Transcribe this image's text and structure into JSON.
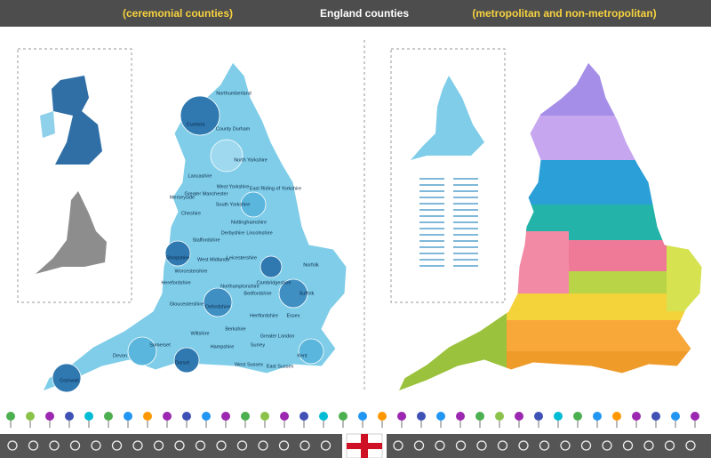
{
  "header": {
    "left": "(ceremonial counties)",
    "center": "England counties",
    "right": "(metropolitan and non-metropolitan)"
  },
  "left_map": {
    "labels": [
      "Northumberland",
      "Cumbria",
      "County Durham",
      "North Yorkshire",
      "Lancashire",
      "West Yorkshire",
      "East Riding of Yorkshire",
      "Greater Manchester",
      "Merseyside",
      "South Yorkshire",
      "Cheshire",
      "Lincolnshire",
      "Staffordshire",
      "Derbyshire",
      "Nottinghamshire",
      "Shropshire",
      "Leicestershire",
      "West Midlands",
      "Norfolk",
      "Herefordshire",
      "Worcestershire",
      "Northamptonshire",
      "Cambridgeshire",
      "Suffolk",
      "Gloucestershire",
      "Oxfordshire",
      "Hertfordshire",
      "Essex",
      "Bedfordshire",
      "Greater London",
      "Wiltshire",
      "Berkshire",
      "Somerset",
      "Surrey",
      "Kent",
      "Devon",
      "Dorset",
      "Hampshire",
      "West Sussex",
      "East Sussex",
      "Cornwall"
    ]
  }
}
